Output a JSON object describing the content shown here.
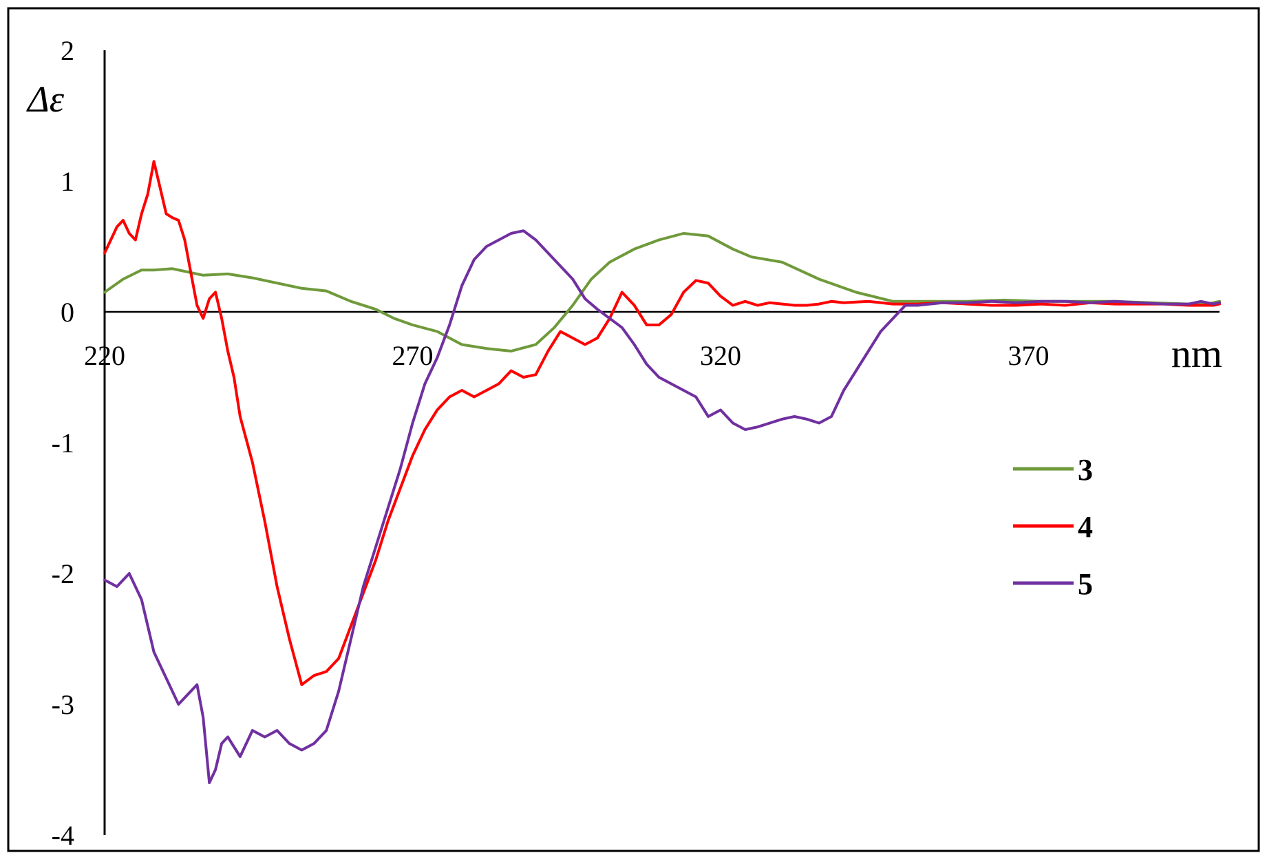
{
  "chart_data": {
    "type": "line",
    "ylabel": "Δε",
    "xlabel": "nm",
    "xlim": [
      220,
      401
    ],
    "ylim": [
      -4,
      2
    ],
    "x_ticks": [
      "220",
      "270",
      "320",
      "370"
    ],
    "y_ticks": [
      "2",
      "1",
      "0",
      "-1",
      "-2",
      "-3",
      "-4"
    ],
    "legend_position": "right",
    "grid": false,
    "series": [
      {
        "name": "3",
        "color": "#6f9a3b",
        "x": [
          220,
          223,
          226,
          228,
          231,
          234,
          236,
          240,
          244,
          248,
          252,
          256,
          260,
          264,
          267,
          270,
          274,
          278,
          282,
          286,
          290,
          293,
          296,
          299,
          302,
          306,
          310,
          314,
          318,
          322,
          325,
          330,
          336,
          342,
          348,
          354,
          360,
          366,
          372,
          378,
          384,
          390,
          396,
          399,
          401
        ],
        "y": [
          0.15,
          0.25,
          0.32,
          0.32,
          0.33,
          0.3,
          0.28,
          0.29,
          0.26,
          0.22,
          0.18,
          0.16,
          0.08,
          0.02,
          -0.05,
          -0.1,
          -0.15,
          -0.25,
          -0.28,
          -0.3,
          -0.25,
          -0.12,
          0.05,
          0.25,
          0.38,
          0.48,
          0.55,
          0.6,
          0.58,
          0.48,
          0.42,
          0.38,
          0.25,
          0.15,
          0.08,
          0.08,
          0.08,
          0.09,
          0.08,
          0.08,
          0.08,
          0.07,
          0.06,
          0.06,
          0.08
        ]
      },
      {
        "name": "4",
        "color": "#ff0000",
        "x": [
          220,
          221,
          222,
          223,
          224,
          225,
          226,
          227,
          228,
          229,
          230,
          231,
          232,
          233,
          234,
          235,
          236,
          237,
          238,
          239,
          240,
          241,
          242,
          244,
          246,
          248,
          250,
          252,
          254,
          256,
          258,
          260,
          262,
          264,
          266,
          268,
          270,
          272,
          274,
          276,
          278,
          280,
          282,
          284,
          286,
          288,
          290,
          292,
          294,
          296,
          298,
          300,
          302,
          304,
          306,
          308,
          310,
          312,
          314,
          316,
          318,
          320,
          322,
          324,
          326,
          328,
          330,
          332,
          334,
          336,
          338,
          340,
          344,
          348,
          352,
          356,
          360,
          364,
          368,
          372,
          376,
          380,
          384,
          388,
          392,
          396,
          400,
          401
        ],
        "y": [
          0.45,
          0.55,
          0.65,
          0.7,
          0.6,
          0.55,
          0.75,
          0.9,
          1.15,
          0.95,
          0.75,
          0.72,
          0.7,
          0.55,
          0.3,
          0.05,
          -0.05,
          0.1,
          0.15,
          -0.05,
          -0.3,
          -0.5,
          -0.8,
          -1.15,
          -1.6,
          -2.1,
          -2.5,
          -2.85,
          -2.78,
          -2.75,
          -2.65,
          -2.4,
          -2.15,
          -1.9,
          -1.6,
          -1.35,
          -1.1,
          -0.9,
          -0.75,
          -0.65,
          -0.6,
          -0.65,
          -0.6,
          -0.55,
          -0.45,
          -0.5,
          -0.48,
          -0.3,
          -0.15,
          -0.2,
          -0.25,
          -0.2,
          -0.05,
          0.15,
          0.05,
          -0.1,
          -0.1,
          -0.02,
          0.15,
          0.24,
          0.22,
          0.12,
          0.05,
          0.08,
          0.05,
          0.07,
          0.06,
          0.05,
          0.05,
          0.06,
          0.08,
          0.07,
          0.08,
          0.06,
          0.06,
          0.07,
          0.06,
          0.05,
          0.05,
          0.06,
          0.05,
          0.07,
          0.06,
          0.06,
          0.06,
          0.05,
          0.05,
          0.06
        ]
      },
      {
        "name": "5",
        "color": "#7030a0",
        "x": [
          220,
          222,
          224,
          226,
          228,
          230,
          232,
          234,
          235,
          236,
          237,
          238,
          239,
          240,
          242,
          244,
          246,
          248,
          250,
          252,
          254,
          256,
          258,
          260,
          262,
          264,
          266,
          268,
          270,
          272,
          274,
          276,
          278,
          280,
          282,
          284,
          286,
          288,
          290,
          292,
          294,
          296,
          298,
          300,
          302,
          304,
          306,
          308,
          310,
          312,
          314,
          316,
          318,
          320,
          322,
          324,
          326,
          328,
          330,
          332,
          334,
          336,
          338,
          340,
          342,
          344,
          346,
          348,
          350,
          352,
          354,
          356,
          360,
          364,
          368,
          372,
          376,
          380,
          384,
          388,
          392,
          396,
          398,
          400,
          401
        ],
        "y": [
          -2.05,
          -2.1,
          -2.0,
          -2.2,
          -2.6,
          -2.8,
          -3.0,
          -2.9,
          -2.85,
          -3.1,
          -3.6,
          -3.5,
          -3.3,
          -3.25,
          -3.4,
          -3.2,
          -3.25,
          -3.2,
          -3.3,
          -3.35,
          -3.3,
          -3.2,
          -2.9,
          -2.5,
          -2.1,
          -1.8,
          -1.5,
          -1.2,
          -0.85,
          -0.55,
          -0.35,
          -0.1,
          0.2,
          0.4,
          0.5,
          0.55,
          0.6,
          0.62,
          0.55,
          0.45,
          0.35,
          0.25,
          0.1,
          0.02,
          -0.05,
          -0.12,
          -0.25,
          -0.4,
          -0.5,
          -0.55,
          -0.6,
          -0.65,
          -0.8,
          -0.75,
          -0.85,
          -0.9,
          -0.88,
          -0.85,
          -0.82,
          -0.8,
          -0.82,
          -0.85,
          -0.8,
          -0.6,
          -0.45,
          -0.3,
          -0.15,
          -0.05,
          0.05,
          0.05,
          0.06,
          0.07,
          0.07,
          0.08,
          0.07,
          0.08,
          0.08,
          0.07,
          0.08,
          0.07,
          0.06,
          0.06,
          0.08,
          0.06,
          0.07
        ]
      }
    ]
  }
}
